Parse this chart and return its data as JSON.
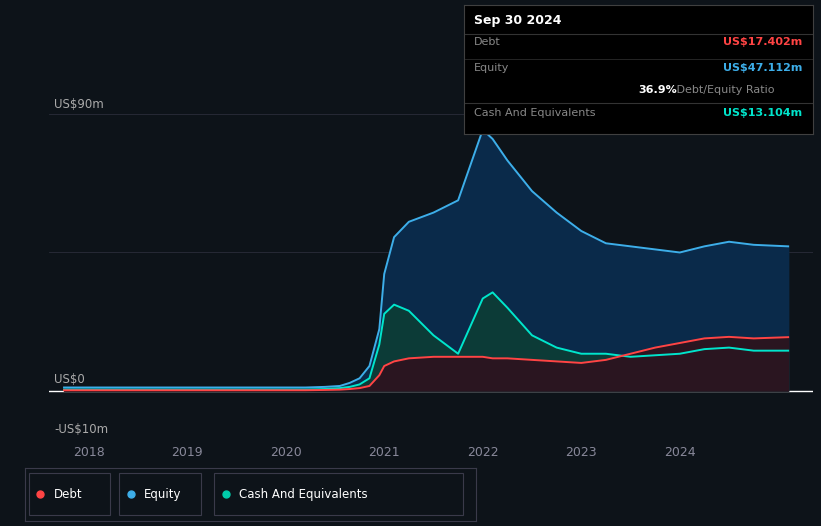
{
  "background_color": "#0d1319",
  "plot_bg_color": "#0d1319",
  "ylim": [
    -15,
    105
  ],
  "xlim_start": 2017.6,
  "xlim_end": 2025.35,
  "x_ticks": [
    2018,
    2019,
    2020,
    2021,
    2022,
    2023,
    2024
  ],
  "tooltip": {
    "date": "Sep 30 2024",
    "debt_label": "Debt",
    "debt_value": "US$17.402m",
    "debt_color": "#ff4444",
    "equity_label": "Equity",
    "equity_value": "US$47.112m",
    "equity_color": "#3daee9",
    "ratio_value": "36.9%",
    "ratio_label": " Debt/Equity Ratio",
    "cash_label": "Cash And Equivalents",
    "cash_value": "US$13.104m",
    "cash_color": "#00e5cc"
  },
  "legend": [
    {
      "label": "Debt",
      "color": "#ff4444"
    },
    {
      "label": "Equity",
      "color": "#3daee9"
    },
    {
      "label": "Cash And Equivalents",
      "color": "#00ccaa"
    }
  ],
  "time": [
    2017.75,
    2018.0,
    2018.25,
    2018.5,
    2018.75,
    2019.0,
    2019.25,
    2019.5,
    2019.75,
    2020.0,
    2020.2,
    2020.4,
    2020.55,
    2020.65,
    2020.75,
    2020.85,
    2020.95,
    2021.0,
    2021.1,
    2021.25,
    2021.5,
    2021.75,
    2022.0,
    2022.1,
    2022.25,
    2022.5,
    2022.75,
    2023.0,
    2023.25,
    2023.5,
    2023.75,
    2024.0,
    2024.25,
    2024.5,
    2024.75,
    2025.1
  ],
  "equity": [
    1.0,
    1.0,
    1.0,
    1.0,
    1.0,
    1.0,
    1.0,
    1.0,
    1.0,
    1.0,
    1.0,
    1.2,
    1.5,
    2.5,
    4.0,
    8.0,
    20.0,
    38.0,
    50.0,
    55.0,
    58.0,
    62.0,
    85.0,
    82.0,
    75.0,
    65.0,
    58.0,
    52.0,
    48.0,
    47.0,
    46.0,
    45.0,
    47.0,
    48.5,
    47.5,
    47.0
  ],
  "cash": [
    0.3,
    0.3,
    0.3,
    0.3,
    0.3,
    0.3,
    0.3,
    0.3,
    0.3,
    0.3,
    0.3,
    0.5,
    0.8,
    1.2,
    2.0,
    4.0,
    15.0,
    25.0,
    28.0,
    26.0,
    18.0,
    12.0,
    30.0,
    32.0,
    27.0,
    18.0,
    14.0,
    12.0,
    12.0,
    11.0,
    11.5,
    12.0,
    13.5,
    14.0,
    13.0,
    13.0
  ],
  "debt": [
    0.1,
    0.1,
    0.1,
    0.1,
    0.1,
    0.1,
    0.1,
    0.1,
    0.1,
    0.1,
    0.1,
    0.2,
    0.3,
    0.5,
    0.8,
    1.5,
    5.0,
    8.0,
    9.5,
    10.5,
    11.0,
    11.0,
    11.0,
    10.5,
    10.5,
    10.0,
    9.5,
    9.0,
    10.0,
    12.0,
    14.0,
    15.5,
    17.0,
    17.5,
    17.0,
    17.4
  ]
}
